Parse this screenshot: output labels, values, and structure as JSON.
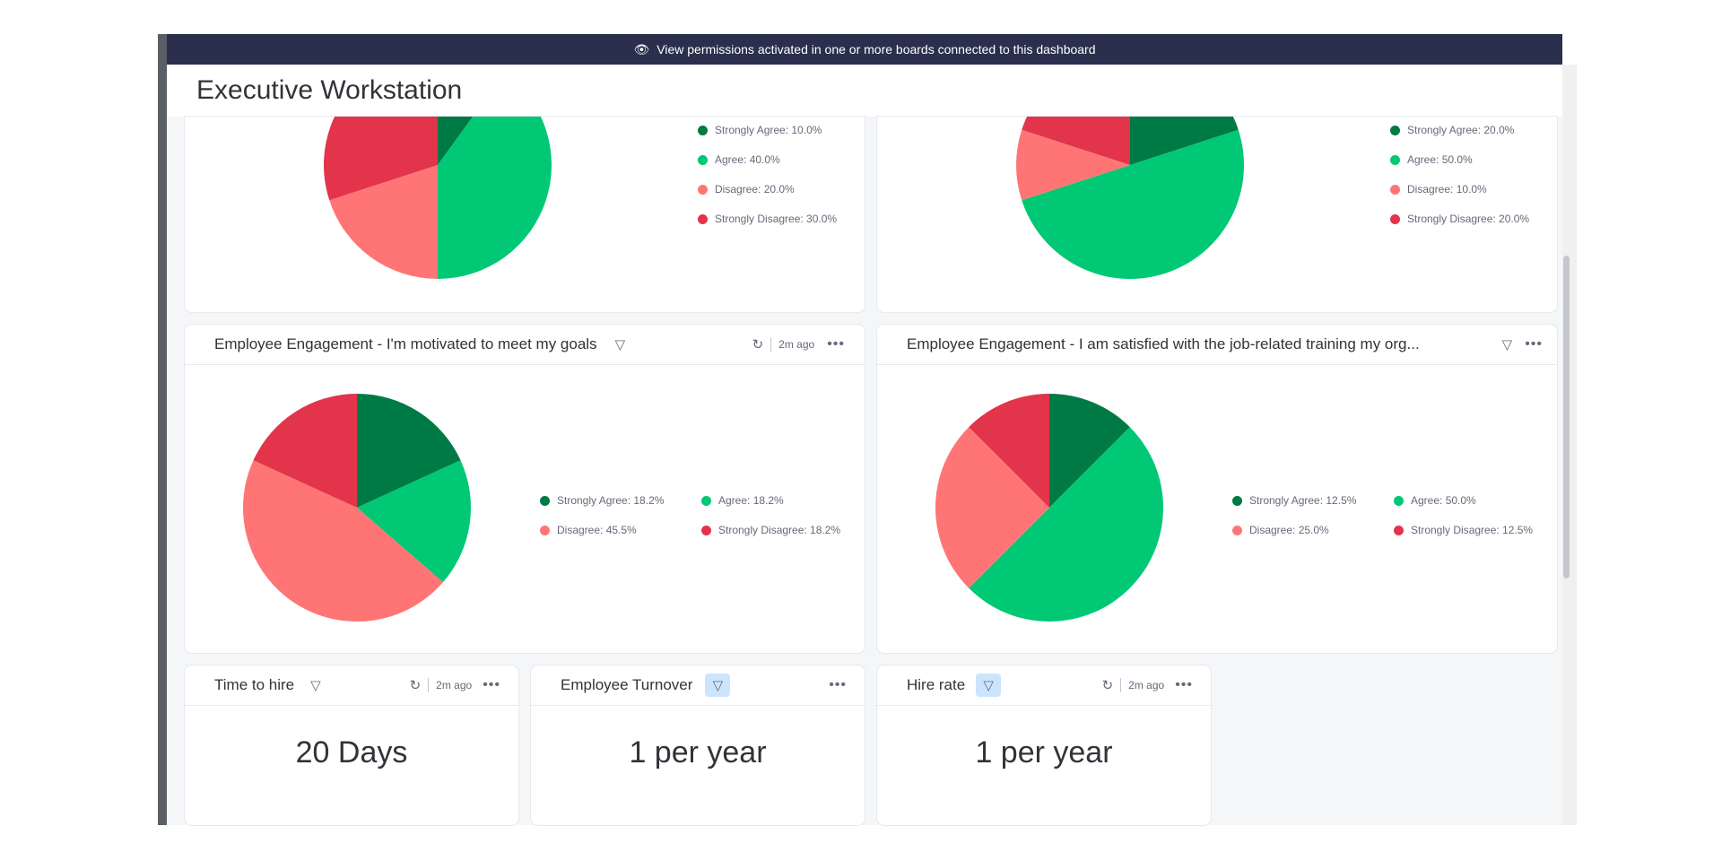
{
  "banner": {
    "text": "View permissions activated in one or more boards connected to this dashboard",
    "icon": "eye-off-icon"
  },
  "header": {
    "title": "Executive Workstation"
  },
  "colors": {
    "strongly_agree": "#007a44",
    "agree": "#00c875",
    "disagree": "#ff7575",
    "strongly_disagree": "#e2344b"
  },
  "pie_widgets": [
    {
      "title": "",
      "legend": [
        "Strongly Agree: 10.0%",
        "Agree: 40.0%",
        "Disagree: 20.0%",
        "Strongly Disagree: 30.0%"
      ]
    },
    {
      "title": "",
      "legend": [
        "Strongly Agree: 20.0%",
        "Agree: 50.0%",
        "Disagree: 10.0%",
        "Strongly Disagree: 20.0%"
      ]
    },
    {
      "title": "Employee Engagement - I'm motivated to meet my goals",
      "updated": "2m ago",
      "legend": [
        "Strongly Agree: 18.2%",
        "Agree: 18.2%",
        "Disagree: 45.5%",
        "Strongly Disagree: 18.2%"
      ]
    },
    {
      "title": "Employee Engagement - I am satisfied with the job-related training my org...",
      "legend": [
        "Strongly Agree: 12.5%",
        "Agree: 50.0%",
        "Disagree: 25.0%",
        "Strongly Disagree: 12.5%"
      ]
    }
  ],
  "number_widgets": [
    {
      "title": "Time to hire",
      "updated": "2m ago",
      "value": "20 Days"
    },
    {
      "title": "Employee Turnover",
      "value": "1 per year"
    },
    {
      "title": "Hire rate",
      "updated": "2m ago",
      "value": "1 per year"
    }
  ],
  "chart_data": [
    {
      "type": "pie",
      "categories": [
        "Strongly Agree",
        "Agree",
        "Disagree",
        "Strongly Disagree"
      ],
      "values": [
        10.0,
        40.0,
        20.0,
        30.0
      ]
    },
    {
      "type": "pie",
      "categories": [
        "Strongly Agree",
        "Agree",
        "Disagree",
        "Strongly Disagree"
      ],
      "values": [
        20.0,
        50.0,
        10.0,
        20.0
      ]
    },
    {
      "type": "pie",
      "title": "Employee Engagement - I'm motivated to meet my goals",
      "categories": [
        "Strongly Agree",
        "Agree",
        "Disagree",
        "Strongly Disagree"
      ],
      "values": [
        18.2,
        18.2,
        45.5,
        18.2
      ]
    },
    {
      "type": "pie",
      "title": "Employee Engagement - I am satisfied with the job-related training my org...",
      "categories": [
        "Strongly Agree",
        "Agree",
        "Disagree",
        "Strongly Disagree"
      ],
      "values": [
        12.5,
        50.0,
        25.0,
        12.5
      ]
    }
  ]
}
